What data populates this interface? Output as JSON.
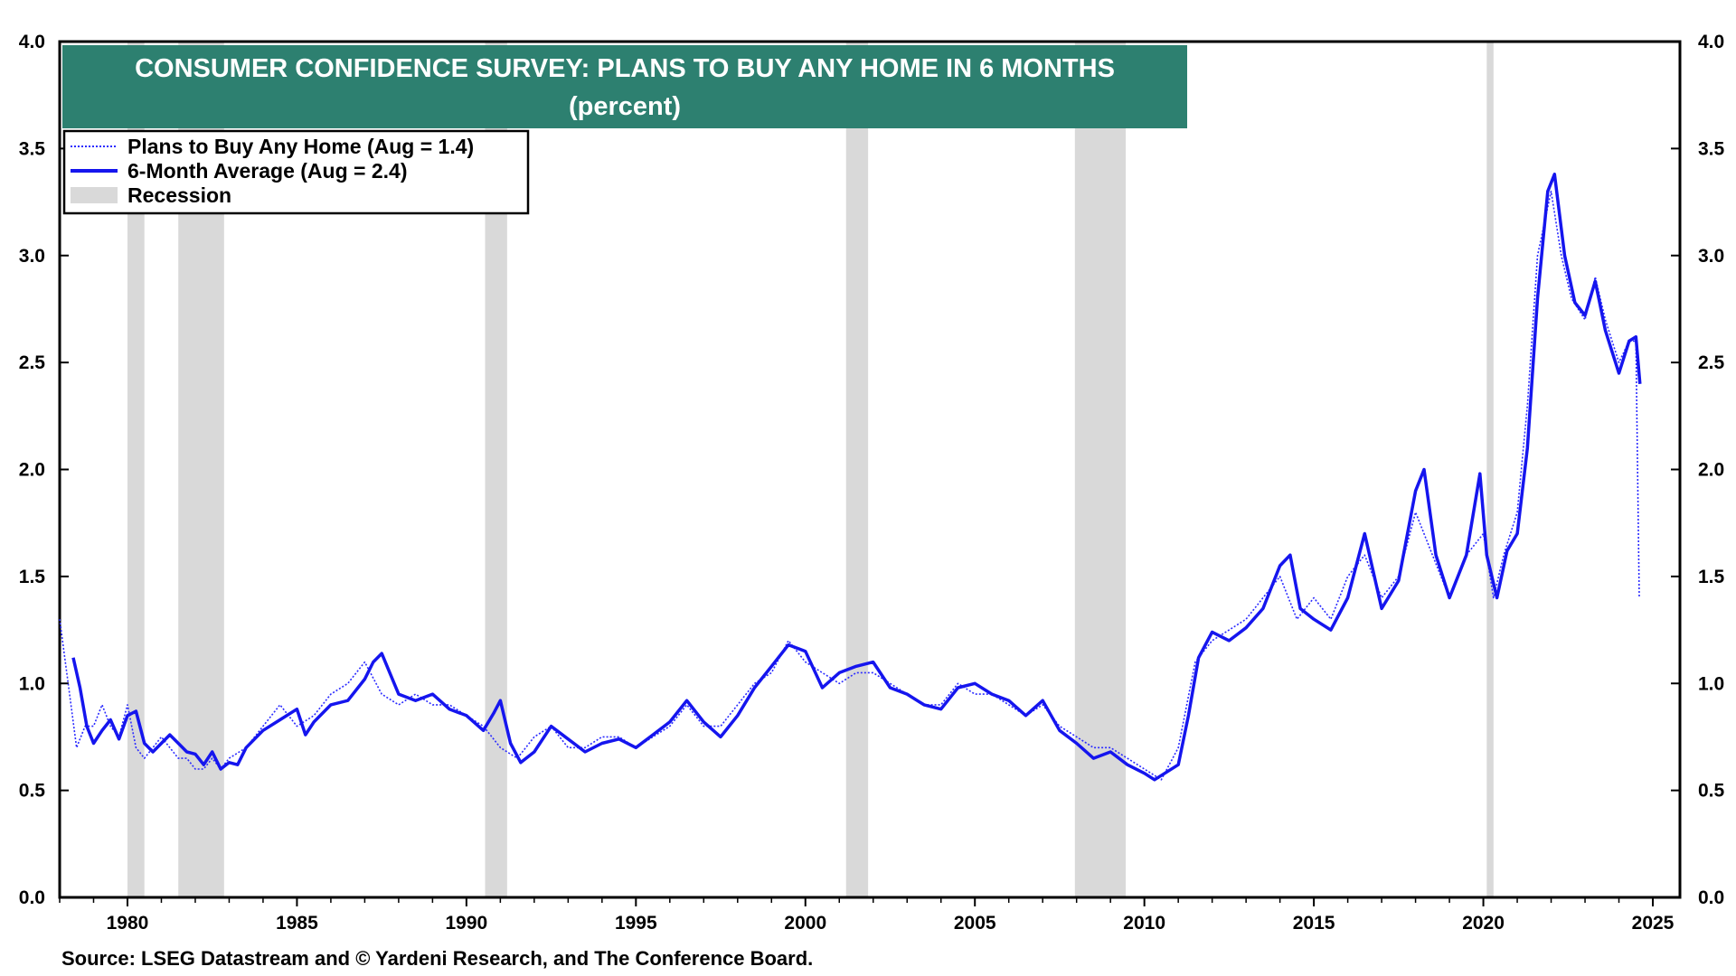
{
  "chart_data": {
    "type": "line",
    "title": "CONSUMER CONFIDENCE SURVEY: PLANS TO BUY ANY HOME IN 6 MONTHS",
    "subtitle": "(percent)",
    "source": "Source: LSEG Datastream and © Yardeni Research, and The Conference Board.",
    "xlim": [
      1978.0,
      2025.8
    ],
    "ylim": [
      0.0,
      4.0
    ],
    "x_ticks": [
      1980,
      1985,
      1990,
      1995,
      2000,
      2005,
      2010,
      2015,
      2020,
      2025
    ],
    "y_ticks": [
      0.0,
      0.5,
      1.0,
      1.5,
      2.0,
      2.5,
      3.0,
      3.5,
      4.0
    ],
    "y_tick_labels": [
      "0.0",
      "0.5",
      "1.0",
      "1.5",
      "2.0",
      "2.5",
      "3.0",
      "3.5",
      "4.0"
    ],
    "grid": false,
    "legend": {
      "position": "top-left",
      "entries": [
        "Plans to Buy Any Home (Aug = 1.4)",
        "6-Month Average (Aug = 2.4)",
        "Recession"
      ]
    },
    "recessions": [
      [
        1980.0,
        1980.5
      ],
      [
        1981.5,
        1982.85
      ],
      [
        1990.55,
        1991.2
      ],
      [
        2001.2,
        2001.85
      ],
      [
        2007.95,
        2009.45
      ],
      [
        2020.1,
        2020.3
      ]
    ],
    "series": [
      {
        "name": "Plans to Buy Any Home",
        "style": "dotted",
        "color": "#2b2bff",
        "points": [
          [
            1978.0,
            1.3
          ],
          [
            1978.25,
            1.0
          ],
          [
            1978.5,
            0.7
          ],
          [
            1978.75,
            0.8
          ],
          [
            1979.0,
            0.8
          ],
          [
            1979.25,
            0.9
          ],
          [
            1979.5,
            0.8
          ],
          [
            1979.75,
            0.75
          ],
          [
            1980.0,
            0.9
          ],
          [
            1980.25,
            0.7
          ],
          [
            1980.5,
            0.65
          ],
          [
            1980.75,
            0.7
          ],
          [
            1981.0,
            0.75
          ],
          [
            1981.25,
            0.7
          ],
          [
            1981.5,
            0.65
          ],
          [
            1981.75,
            0.65
          ],
          [
            1982.0,
            0.6
          ],
          [
            1982.25,
            0.6
          ],
          [
            1982.5,
            0.65
          ],
          [
            1982.75,
            0.6
          ],
          [
            1983.0,
            0.65
          ],
          [
            1983.5,
            0.7
          ],
          [
            1984.0,
            0.8
          ],
          [
            1984.5,
            0.9
          ],
          [
            1985.0,
            0.8
          ],
          [
            1985.5,
            0.85
          ],
          [
            1986.0,
            0.95
          ],
          [
            1986.5,
            1.0
          ],
          [
            1987.0,
            1.1
          ],
          [
            1987.5,
            0.95
          ],
          [
            1988.0,
            0.9
          ],
          [
            1988.5,
            0.95
          ],
          [
            1989.0,
            0.9
          ],
          [
            1989.5,
            0.9
          ],
          [
            1990.0,
            0.85
          ],
          [
            1990.5,
            0.8
          ],
          [
            1990.75,
            0.75
          ],
          [
            1991.0,
            0.7
          ],
          [
            1991.5,
            0.65
          ],
          [
            1992.0,
            0.75
          ],
          [
            1992.5,
            0.8
          ],
          [
            1993.0,
            0.7
          ],
          [
            1993.5,
            0.7
          ],
          [
            1994.0,
            0.75
          ],
          [
            1994.5,
            0.75
          ],
          [
            1995.0,
            0.7
          ],
          [
            1995.5,
            0.75
          ],
          [
            1996.0,
            0.8
          ],
          [
            1996.5,
            0.9
          ],
          [
            1997.0,
            0.8
          ],
          [
            1997.5,
            0.8
          ],
          [
            1998.0,
            0.9
          ],
          [
            1998.5,
            1.0
          ],
          [
            1999.0,
            1.05
          ],
          [
            1999.5,
            1.2
          ],
          [
            2000.0,
            1.1
          ],
          [
            2000.5,
            1.05
          ],
          [
            2001.0,
            1.0
          ],
          [
            2001.5,
            1.05
          ],
          [
            2002.0,
            1.05
          ],
          [
            2002.5,
            1.0
          ],
          [
            2003.0,
            0.95
          ],
          [
            2003.5,
            0.9
          ],
          [
            2004.0,
            0.9
          ],
          [
            2004.5,
            1.0
          ],
          [
            2005.0,
            0.95
          ],
          [
            2005.5,
            0.95
          ],
          [
            2006.0,
            0.9
          ],
          [
            2006.5,
            0.85
          ],
          [
            2007.0,
            0.9
          ],
          [
            2007.5,
            0.8
          ],
          [
            2008.0,
            0.75
          ],
          [
            2008.5,
            0.7
          ],
          [
            2009.0,
            0.7
          ],
          [
            2009.5,
            0.65
          ],
          [
            2010.0,
            0.6
          ],
          [
            2010.5,
            0.55
          ],
          [
            2011.0,
            0.7
          ],
          [
            2011.5,
            1.1
          ],
          [
            2012.0,
            1.2
          ],
          [
            2012.5,
            1.25
          ],
          [
            2013.0,
            1.3
          ],
          [
            2013.5,
            1.4
          ],
          [
            2014.0,
            1.5
          ],
          [
            2014.5,
            1.3
          ],
          [
            2015.0,
            1.4
          ],
          [
            2015.5,
            1.3
          ],
          [
            2016.0,
            1.5
          ],
          [
            2016.5,
            1.6
          ],
          [
            2017.0,
            1.4
          ],
          [
            2017.5,
            1.5
          ],
          [
            2018.0,
            1.8
          ],
          [
            2018.5,
            1.6
          ],
          [
            2019.0,
            1.4
          ],
          [
            2019.5,
            1.6
          ],
          [
            2020.0,
            1.7
          ],
          [
            2020.3,
            1.4
          ],
          [
            2020.6,
            1.6
          ],
          [
            2021.0,
            1.8
          ],
          [
            2021.3,
            2.3
          ],
          [
            2021.6,
            3.0
          ],
          [
            2022.0,
            3.3
          ],
          [
            2022.3,
            3.0
          ],
          [
            2022.6,
            2.8
          ],
          [
            2023.0,
            2.7
          ],
          [
            2023.3,
            2.9
          ],
          [
            2023.6,
            2.7
          ],
          [
            2024.0,
            2.5
          ],
          [
            2024.3,
            2.6
          ],
          [
            2024.5,
            2.6
          ],
          [
            2024.6,
            1.4
          ]
        ]
      },
      {
        "name": "6-Month Average",
        "style": "solid",
        "color": "#1515ee",
        "points": [
          [
            1978.4,
            1.12
          ],
          [
            1978.6,
            0.98
          ],
          [
            1978.8,
            0.8
          ],
          [
            1979.0,
            0.72
          ],
          [
            1979.25,
            0.78
          ],
          [
            1979.5,
            0.83
          ],
          [
            1979.75,
            0.74
          ],
          [
            1980.0,
            0.85
          ],
          [
            1980.25,
            0.87
          ],
          [
            1980.5,
            0.72
          ],
          [
            1980.75,
            0.68
          ],
          [
            1981.0,
            0.72
          ],
          [
            1981.25,
            0.76
          ],
          [
            1981.5,
            0.72
          ],
          [
            1981.75,
            0.68
          ],
          [
            1982.0,
            0.67
          ],
          [
            1982.25,
            0.62
          ],
          [
            1982.5,
            0.68
          ],
          [
            1982.75,
            0.6
          ],
          [
            1983.0,
            0.63
          ],
          [
            1983.25,
            0.62
          ],
          [
            1983.5,
            0.7
          ],
          [
            1984.0,
            0.78
          ],
          [
            1984.5,
            0.83
          ],
          [
            1985.0,
            0.88
          ],
          [
            1985.25,
            0.76
          ],
          [
            1985.5,
            0.82
          ],
          [
            1986.0,
            0.9
          ],
          [
            1986.5,
            0.92
          ],
          [
            1987.0,
            1.02
          ],
          [
            1987.25,
            1.1
          ],
          [
            1987.5,
            1.14
          ],
          [
            1988.0,
            0.95
          ],
          [
            1988.5,
            0.92
          ],
          [
            1989.0,
            0.95
          ],
          [
            1989.5,
            0.88
          ],
          [
            1990.0,
            0.85
          ],
          [
            1990.5,
            0.78
          ],
          [
            1990.8,
            0.86
          ],
          [
            1991.0,
            0.92
          ],
          [
            1991.3,
            0.72
          ],
          [
            1991.6,
            0.63
          ],
          [
            1992.0,
            0.68
          ],
          [
            1992.5,
            0.8
          ],
          [
            1993.0,
            0.74
          ],
          [
            1993.5,
            0.68
          ],
          [
            1994.0,
            0.72
          ],
          [
            1994.5,
            0.74
          ],
          [
            1995.0,
            0.7
          ],
          [
            1995.5,
            0.76
          ],
          [
            1996.0,
            0.82
          ],
          [
            1996.5,
            0.92
          ],
          [
            1997.0,
            0.82
          ],
          [
            1997.5,
            0.75
          ],
          [
            1998.0,
            0.85
          ],
          [
            1998.5,
            0.98
          ],
          [
            1999.0,
            1.08
          ],
          [
            1999.5,
            1.18
          ],
          [
            2000.0,
            1.15
          ],
          [
            2000.5,
            0.98
          ],
          [
            2001.0,
            1.05
          ],
          [
            2001.5,
            1.08
          ],
          [
            2002.0,
            1.1
          ],
          [
            2002.5,
            0.98
          ],
          [
            2003.0,
            0.95
          ],
          [
            2003.5,
            0.9
          ],
          [
            2004.0,
            0.88
          ],
          [
            2004.5,
            0.98
          ],
          [
            2005.0,
            1.0
          ],
          [
            2005.5,
            0.95
          ],
          [
            2006.0,
            0.92
          ],
          [
            2006.5,
            0.85
          ],
          [
            2007.0,
            0.92
          ],
          [
            2007.5,
            0.78
          ],
          [
            2008.0,
            0.72
          ],
          [
            2008.5,
            0.65
          ],
          [
            2009.0,
            0.68
          ],
          [
            2009.5,
            0.62
          ],
          [
            2010.0,
            0.58
          ],
          [
            2010.3,
            0.55
          ],
          [
            2010.6,
            0.58
          ],
          [
            2011.0,
            0.62
          ],
          [
            2011.3,
            0.85
          ],
          [
            2011.6,
            1.12
          ],
          [
            2012.0,
            1.24
          ],
          [
            2012.5,
            1.2
          ],
          [
            2013.0,
            1.26
          ],
          [
            2013.5,
            1.35
          ],
          [
            2014.0,
            1.55
          ],
          [
            2014.3,
            1.6
          ],
          [
            2014.6,
            1.35
          ],
          [
            2015.0,
            1.3
          ],
          [
            2015.5,
            1.25
          ],
          [
            2016.0,
            1.4
          ],
          [
            2016.5,
            1.7
          ],
          [
            2017.0,
            1.35
          ],
          [
            2017.5,
            1.48
          ],
          [
            2018.0,
            1.9
          ],
          [
            2018.25,
            2.0
          ],
          [
            2018.6,
            1.6
          ],
          [
            2019.0,
            1.4
          ],
          [
            2019.5,
            1.6
          ],
          [
            2019.9,
            1.98
          ],
          [
            2020.1,
            1.6
          ],
          [
            2020.4,
            1.4
          ],
          [
            2020.7,
            1.62
          ],
          [
            2021.0,
            1.7
          ],
          [
            2021.3,
            2.1
          ],
          [
            2021.6,
            2.8
          ],
          [
            2021.9,
            3.3
          ],
          [
            2022.1,
            3.38
          ],
          [
            2022.4,
            3.0
          ],
          [
            2022.7,
            2.78
          ],
          [
            2023.0,
            2.72
          ],
          [
            2023.3,
            2.88
          ],
          [
            2023.6,
            2.65
          ],
          [
            2024.0,
            2.45
          ],
          [
            2024.3,
            2.6
          ],
          [
            2024.5,
            2.62
          ],
          [
            2024.62,
            2.4
          ]
        ]
      }
    ],
    "annotations": []
  },
  "colors": {
    "title_bg": "#2d8070",
    "recession": "#d9d9d9",
    "series_raw": "#2b2bff",
    "series_avg": "#1515ee"
  }
}
